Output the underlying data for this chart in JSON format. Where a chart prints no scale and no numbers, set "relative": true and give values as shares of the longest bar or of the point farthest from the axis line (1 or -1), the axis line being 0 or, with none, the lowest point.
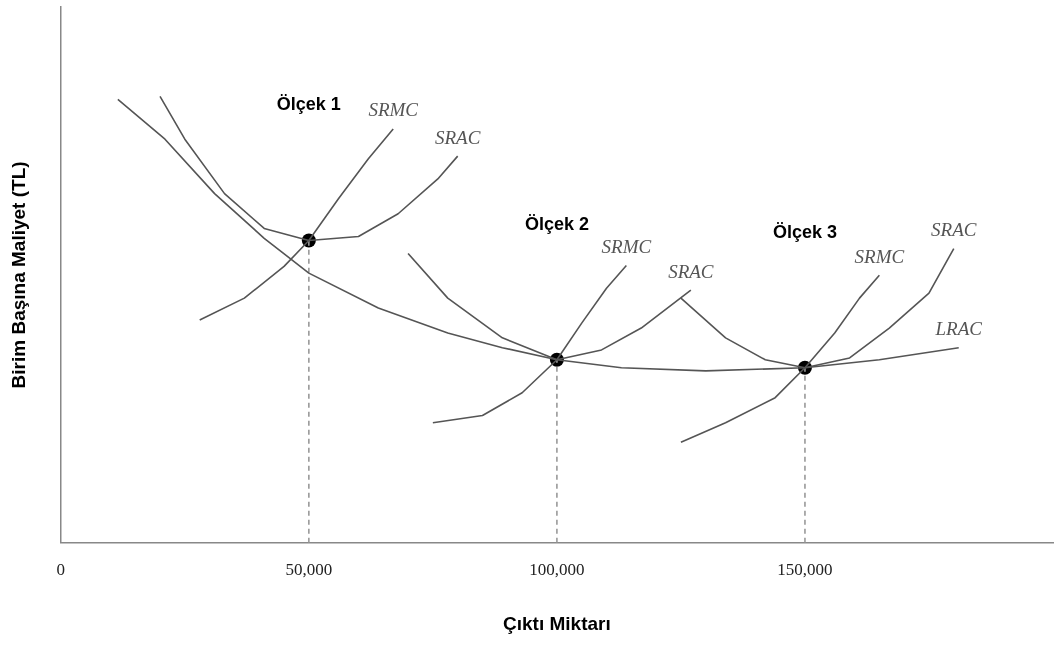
{
  "chart_data": {
    "type": "line",
    "xlabel": "Çıktı Miktarı",
    "ylabel": "Birim Başına Maliyet (TL)",
    "relative": true,
    "legend": false,
    "grid": false,
    "tick_labels": "x",
    "marker": "none",
    "xlim": [
      0,
      200000
    ],
    "xticks": [
      0,
      {
        "value": 50000,
        "label": "50,000"
      },
      {
        "value": 100000,
        "label": "100,000"
      },
      {
        "value": 150000,
        "label": "150,000"
      }
    ],
    "annotations": [
      "Ölçek 1",
      "Ölçek 2",
      "Ölçek 3"
    ],
    "series": [
      {
        "name": "LRAC",
        "color": "#555555",
        "x": [
          11500,
          21000,
          31000,
          41000,
          50000,
          64000,
          78000,
          89000,
          100000,
          113000,
          130000,
          150000,
          165000,
          181000
        ],
        "values": [
          0.993,
          0.904,
          0.782,
          0.682,
          0.604,
          0.526,
          0.47,
          0.437,
          0.41,
          0.392,
          0.385,
          0.392,
          0.41,
          0.437
        ]
      },
      {
        "name": "SRAC",
        "color": "#555555",
        "x": [
          20000,
          25000,
          33000,
          41000,
          50000,
          60000,
          68000,
          76000,
          80000
        ],
        "values": [
          1.0,
          0.904,
          0.782,
          0.704,
          0.677,
          0.686,
          0.737,
          0.815,
          0.866
        ]
      },
      {
        "name": "SRMC",
        "color": "#555555",
        "x": [
          28000,
          37000,
          45000,
          50000,
          56000,
          62000,
          67000
        ],
        "values": [
          0.499,
          0.548,
          0.619,
          0.677,
          0.771,
          0.86,
          0.927
        ]
      },
      {
        "name": "SRAC",
        "color": "#555555",
        "x": [
          70000,
          78000,
          89000,
          100000,
          109000,
          117000,
          127000
        ],
        "values": [
          0.648,
          0.548,
          0.459,
          0.41,
          0.432,
          0.481,
          0.566
        ]
      },
      {
        "name": "SRMC",
        "color": "#555555",
        "x": [
          75000,
          85000,
          93000,
          100000,
          105000,
          110000,
          114000
        ],
        "values": [
          0.269,
          0.285,
          0.336,
          0.41,
          0.492,
          0.57,
          0.621
        ]
      },
      {
        "name": "SRAC",
        "color": "#555555",
        "x": [
          125000,
          134000,
          142000,
          150000,
          159000,
          167000,
          175000,
          180000
        ],
        "values": [
          0.548,
          0.459,
          0.41,
          0.392,
          0.414,
          0.481,
          0.559,
          0.659
        ]
      },
      {
        "name": "SRMC",
        "color": "#555555",
        "x": [
          125000,
          134000,
          144000,
          150000,
          156000,
          161000,
          165000
        ],
        "values": [
          0.225,
          0.269,
          0.325,
          0.392,
          0.47,
          0.548,
          0.599
        ]
      },
      {
        "color": "#999999",
        "line_style": "dashed",
        "x": [
          50000,
          50000
        ],
        "values": [
          0,
          0.677
        ]
      },
      {
        "color": "#999999",
        "line_style": "dashed",
        "x": [
          100000,
          100000
        ],
        "values": [
          0,
          0.41
        ]
      },
      {
        "color": "#999999",
        "line_style": "dashed",
        "x": [
          150000,
          150000
        ],
        "values": [
          0,
          0.392
        ]
      },
      {
        "type": "scatter",
        "marker": "circle",
        "color": "#000000",
        "x": [
          50000,
          100000,
          150000
        ],
        "values": [
          0.677,
          0.41,
          0.392
        ]
      }
    ]
  }
}
